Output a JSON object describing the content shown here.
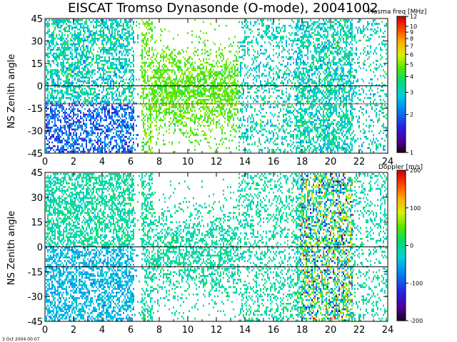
{
  "title": "EISCAT Tromso Dynasonde (O-mode),  20041002",
  "footer": "3 Oct 2004 00:07",
  "chart_data": [
    {
      "type": "heatmap",
      "panel": "top",
      "ylabel": "NS Zenith angle",
      "xlabel": "",
      "xlim": [
        0,
        24
      ],
      "ylim": [
        -45,
        45
      ],
      "x_ticks": [
        "0",
        "2",
        "4",
        "6",
        "8",
        "10",
        "12",
        "14",
        "16",
        "18",
        "20",
        "22",
        "24"
      ],
      "y_ticks": [
        "45",
        "30",
        "15",
        "0",
        "-15",
        "-30",
        "-45"
      ],
      "reference_lines": [
        {
          "y": 0,
          "color": "#000000"
        },
        {
          "y": -12,
          "color": "#cc3b1a"
        }
      ],
      "colorbar": {
        "label": "Plasma freq [MHz]",
        "scale": "log",
        "range": [
          1,
          12
        ],
        "ticks": [
          "12",
          "10",
          "9",
          "8",
          "7",
          "6",
          "5",
          "4",
          "3",
          "2",
          "1"
        ]
      },
      "grid": false
    },
    {
      "type": "heatmap",
      "panel": "bottom",
      "ylabel": "NS Zenith angle",
      "xlabel": "",
      "xlim": [
        0,
        24
      ],
      "ylim": [
        -45,
        45
      ],
      "x_ticks": [
        "0",
        "2",
        "4",
        "6",
        "8",
        "10",
        "12",
        "14",
        "16",
        "18",
        "20",
        "22",
        "24"
      ],
      "y_ticks": [
        "45",
        "30",
        "15",
        "0",
        "-15",
        "-30",
        "-45"
      ],
      "reference_lines": [
        {
          "y": 0,
          "color": "#000000"
        },
        {
          "y": -12,
          "color": "#000000"
        }
      ],
      "colorbar": {
        "label": "Doppler [m/s]",
        "scale": "linear",
        "range": [
          -200,
          200
        ],
        "ticks": [
          "200",
          "100",
          "0",
          "-100",
          "-200"
        ]
      },
      "grid": false
    }
  ]
}
